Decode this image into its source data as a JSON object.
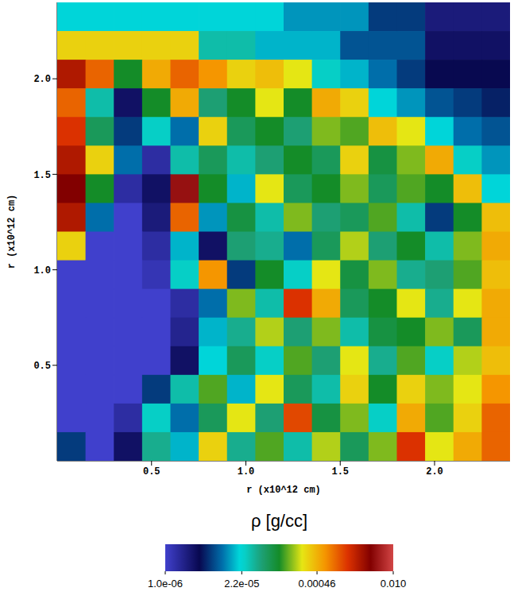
{
  "chart_data": {
    "type": "heatmap",
    "x_label": "r (x10^12 cm)",
    "y_label": "r (x10^12 cm)",
    "xlim": [
      0,
      2.4
    ],
    "ylim": [
      0,
      2.4
    ],
    "xticks": [
      0.5,
      {
        "value": 1,
        "label": "1.0"
      },
      1.5,
      {
        "value": 2,
        "label": "2.0"
      }
    ],
    "yticks": [
      0.5,
      {
        "value": 1,
        "label": "1.0"
      },
      1.5,
      {
        "value": 2,
        "label": "2.0"
      }
    ],
    "x": [
      0.075,
      0.225,
      0.375,
      0.525,
      0.675,
      0.825,
      0.975,
      1.125,
      1.275,
      1.425,
      1.575,
      1.725,
      1.875,
      2.025,
      2.175,
      2.325
    ],
    "y": [
      2.325,
      2.175,
      2.025,
      1.875,
      1.725,
      1.575,
      1.425,
      1.275,
      1.125,
      0.975,
      0.825,
      0.675,
      0.525,
      0.375,
      0.225,
      0.075
    ],
    "values": [
      [
        2e-05,
        2e-05,
        2e-05,
        2e-05,
        2e-05,
        2e-05,
        2e-05,
        2e-05,
        1.3e-05,
        1.3e-05,
        1.3e-05,
        6.3e-06,
        6.3e-06,
        2.5e-06,
        2.5e-06,
        2.5e-06
      ],
      [
        0.00032,
        0.00032,
        0.00032,
        0.00032,
        0.00032,
        3.2e-05,
        3.2e-05,
        1.6e-05,
        1.6e-05,
        1.6e-05,
        7.9e-06,
        7.9e-06,
        7.9e-06,
        3.2e-06,
        3.2e-06,
        3.2e-06
      ],
      [
        0.0025,
        0.001,
        0.0001,
        0.0005,
        0.001,
        0.00063,
        0.00032,
        0.0004,
        0.00025,
        2.5e-05,
        1.6e-05,
        1e-05,
        6.3e-06,
        4e-06,
        4e-06,
        4e-06
      ],
      [
        0.001,
        3.2e-05,
        3.2e-06,
        0.0001,
        0.0005,
        5e-05,
        0.0001,
        0.00025,
        0.0001,
        0.0005,
        0.00032,
        2e-05,
        1.3e-05,
        7.9e-06,
        6.3e-06,
        5e-06
      ],
      [
        0.0016,
        6.3e-05,
        6.3e-06,
        2.5e-05,
        1e-05,
        0.00032,
        6.3e-05,
        0.0001,
        5e-05,
        0.00016,
        0.00013,
        0.0004,
        0.00025,
        2e-05,
        1e-05,
        7.9e-06
      ],
      [
        0.0025,
        0.00032,
        1e-05,
        1.6e-06,
        3.2e-05,
        6.3e-05,
        3.2e-05,
        5e-05,
        0.0001,
        6.3e-05,
        0.00032,
        7.9e-05,
        0.00016,
        0.0005,
        2.5e-05,
        1.3e-05
      ],
      [
        0.004,
        0.0001,
        1.6e-06,
        3.2e-06,
        0.005,
        0.0001,
        1.6e-05,
        0.00025,
        6.3e-05,
        0.0001,
        0.00016,
        6.3e-05,
        0.00013,
        0.0001,
        0.0004,
        2e-05
      ],
      [
        0.0025,
        1e-05,
        1e-06,
        2.5e-06,
        0.001,
        1.3e-05,
        7.9e-05,
        3.2e-05,
        0.00016,
        5e-05,
        6.3e-05,
        0.00013,
        3.2e-05,
        6.3e-06,
        0.0001,
        0.0004
      ],
      [
        0.00032,
        1e-06,
        1e-06,
        1.6e-06,
        1.6e-05,
        3.2e-06,
        5e-05,
        4e-05,
        1e-05,
        6.3e-05,
        0.0002,
        5e-05,
        0.0001,
        3.2e-05,
        0.00016,
        0.0005
      ],
      [
        1e-06,
        1e-06,
        1e-06,
        1.3e-06,
        2.5e-05,
        0.00063,
        6.3e-06,
        0.0001,
        2.5e-05,
        0.00025,
        7.9e-05,
        0.00016,
        4e-05,
        5e-05,
        0.00013,
        0.0004
      ],
      [
        1e-06,
        1e-06,
        1e-06,
        1e-06,
        1.6e-06,
        1e-05,
        0.00016,
        3.2e-05,
        0.0016,
        0.0005,
        6.3e-05,
        0.0001,
        0.00025,
        4e-05,
        0.00025,
        0.0005
      ],
      [
        1e-06,
        1e-06,
        1e-06,
        1e-06,
        2e-06,
        1.6e-05,
        4e-05,
        0.0002,
        5e-05,
        0.00016,
        3.2e-05,
        7.9e-05,
        0.0001,
        0.00016,
        6.3e-05,
        0.0005
      ],
      [
        1e-06,
        1e-06,
        1e-06,
        1e-06,
        3.2e-06,
        2e-05,
        6.3e-05,
        2.5e-05,
        0.00013,
        5e-05,
        0.00025,
        4e-05,
        0.00013,
        2.5e-05,
        0.0002,
        0.0004
      ],
      [
        1e-06,
        1e-06,
        1e-06,
        6.3e-06,
        3.2e-05,
        0.00013,
        1.6e-05,
        0.00025,
        6.3e-05,
        3.2e-05,
        0.00032,
        0.0001,
        0.00032,
        0.00016,
        0.00025,
        0.00063
      ],
      [
        1e-06,
        1e-06,
        1.6e-06,
        2.5e-05,
        1e-05,
        6.3e-05,
        0.00025,
        5e-05,
        0.0013,
        7.9e-05,
        0.00016,
        2.5e-05,
        0.0005,
        0.00013,
        0.00032,
        0.001
      ],
      [
        6.3e-06,
        1e-06,
        3.2e-06,
        4e-05,
        1.6e-05,
        0.00032,
        4e-05,
        0.00013,
        3.2e-05,
        0.0002,
        6.3e-05,
        0.00016,
        0.0016,
        0.00025,
        0.0005,
        0.001
      ]
    ],
    "colorbar": {
      "label": "ρ [g/cc]",
      "range": [
        1e-06,
        0.01
      ],
      "log": true,
      "ticks": [
        {
          "value": 1e-06,
          "label": "1.0e-06"
        },
        {
          "value": 2.2e-05,
          "label": "2.2e-05"
        },
        0.00046,
        {
          "value": 0.01,
          "label": "0.010"
        }
      ]
    }
  }
}
